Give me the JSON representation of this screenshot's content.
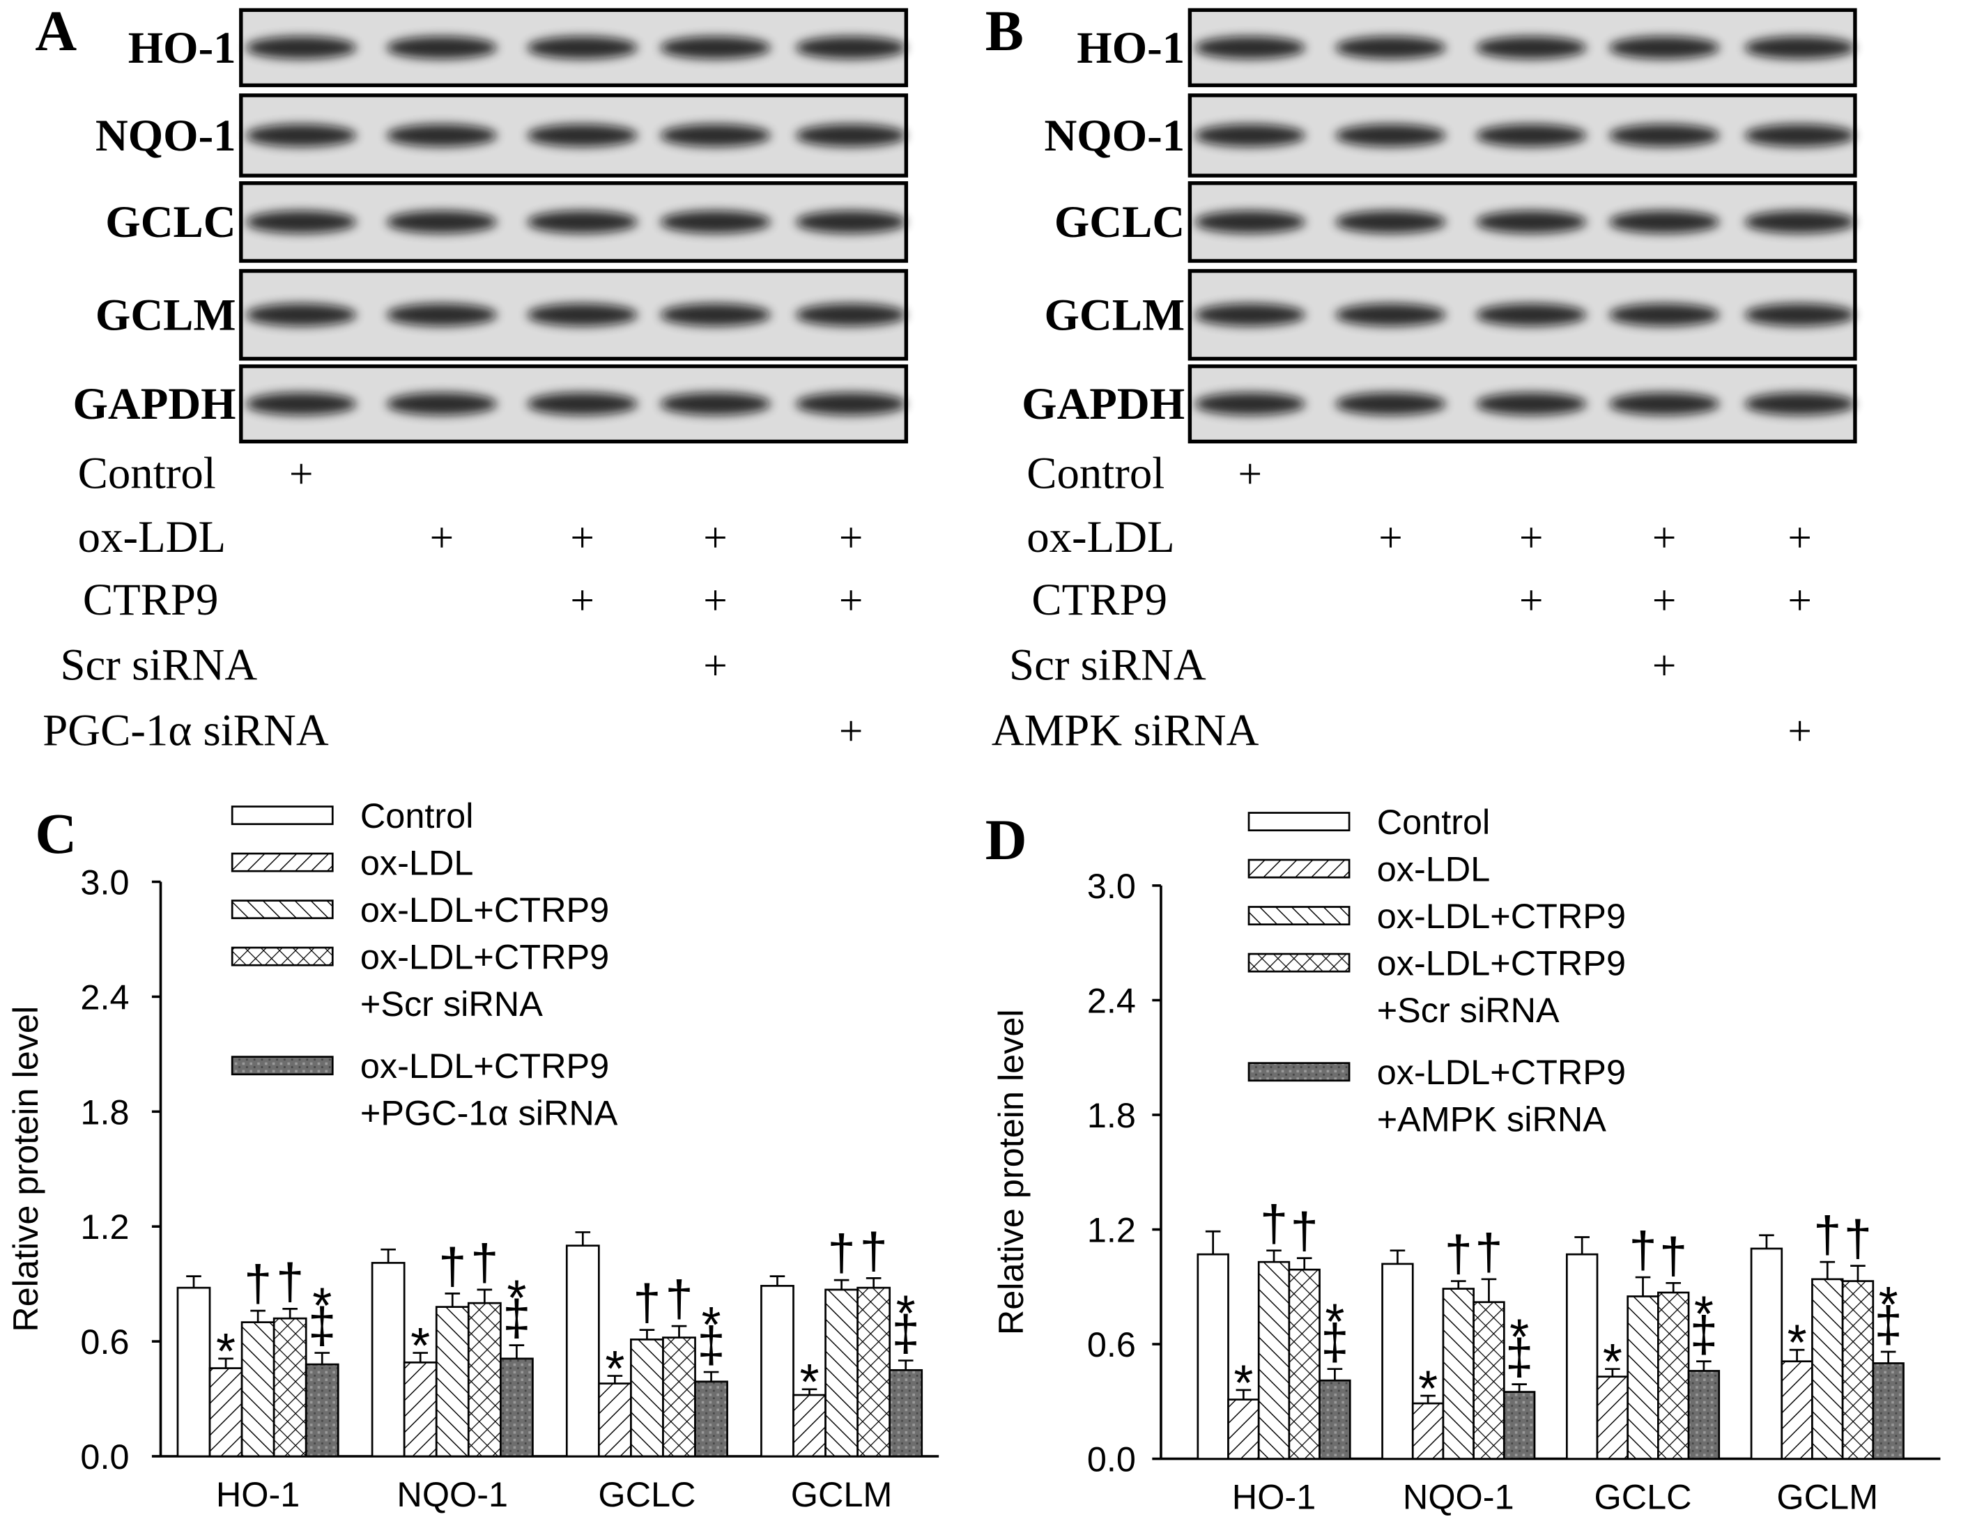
{
  "panel_labels": [
    "A",
    "B",
    "C",
    "D"
  ],
  "blots": [
    {
      "rows": [
        "HO-1",
        "NQO-1",
        "GCLC",
        "GCLM",
        "GAPDH"
      ],
      "conditions": [
        {
          "name": "Control",
          "lanes": [
            "+",
            null,
            null,
            null,
            null
          ]
        },
        {
          "name": "ox-LDL",
          "lanes": [
            null,
            "+",
            "+",
            "+",
            "+"
          ]
        },
        {
          "name": "CTRP9",
          "lanes": [
            null,
            null,
            "+",
            "+",
            "+"
          ]
        },
        {
          "name": "Scr siRNA",
          "lanes": [
            null,
            null,
            null,
            "+",
            null
          ]
        },
        {
          "name": "PGC-1α siRNA",
          "lanes": [
            null,
            null,
            null,
            null,
            "+"
          ]
        }
      ]
    },
    {
      "rows": [
        "HO-1",
        "NQO-1",
        "GCLC",
        "GCLM",
        "GAPDH"
      ],
      "conditions": [
        {
          "name": "Control",
          "lanes": [
            "+",
            null,
            null,
            null,
            null
          ]
        },
        {
          "name": "ox-LDL",
          "lanes": [
            null,
            "+",
            "+",
            "+",
            "+"
          ]
        },
        {
          "name": "CTRP9",
          "lanes": [
            null,
            null,
            "+",
            "+",
            "+"
          ]
        },
        {
          "name": "Scr siRNA",
          "lanes": [
            null,
            null,
            null,
            "+",
            null
          ]
        },
        {
          "name": "AMPK siRNA",
          "lanes": [
            null,
            null,
            null,
            null,
            "+"
          ]
        }
      ]
    }
  ],
  "chart_data": [
    {
      "type": "bar",
      "ylabel": "Relative protein level",
      "categories": [
        "HO-1",
        "NQO-1",
        "GCLC",
        "GCLM"
      ],
      "ylim": [
        0,
        3
      ],
      "yticks": [
        {
          "value": 0,
          "label": "0.0"
        },
        0.6,
        1.2,
        1.8,
        2.4,
        {
          "value": 3,
          "label": "3.0"
        }
      ],
      "series": [
        {
          "name": "Control",
          "color": "#ffffff",
          "pattern": "none",
          "values": [
            0.88,
            1.01,
            1.1,
            0.89
          ],
          "errors": [
            0.06,
            0.07,
            0.07,
            0.05
          ]
        },
        {
          "name": "ox-LDL",
          "color": "#ffffff",
          "pattern": "forward",
          "values": [
            0.46,
            0.49,
            0.38,
            0.32
          ],
          "errors": [
            0.05,
            0.05,
            0.04,
            0.03
          ],
          "annotations": [
            [
              "*"
            ],
            [
              "*"
            ],
            [
              "*"
            ],
            [
              "*"
            ]
          ]
        },
        {
          "name": "ox-LDL+CTRP9",
          "color": "#ffffff",
          "pattern": "backward",
          "values": [
            0.7,
            0.78,
            0.61,
            0.87
          ],
          "errors": [
            0.06,
            0.07,
            0.05,
            0.05
          ],
          "annotations": [
            [
              "†"
            ],
            [
              "†"
            ],
            [
              "†"
            ],
            [
              "†"
            ]
          ]
        },
        {
          "name": "ox-LDL+CTRP9\n+Scr siRNA",
          "color": "#ffffff",
          "pattern": "cross",
          "values": [
            0.72,
            0.8,
            0.62,
            0.88
          ],
          "errors": [
            0.05,
            0.07,
            0.06,
            0.05
          ],
          "annotations": [
            [
              "†"
            ],
            [
              "†"
            ],
            [
              "†"
            ],
            [
              "†"
            ]
          ]
        },
        {
          "name": "ox-LDL+CTRP9\n+PGC-1α siRNA",
          "color": "#7f7f7f",
          "pattern": "dots",
          "values": [
            0.48,
            0.51,
            0.39,
            0.45
          ],
          "errors": [
            0.06,
            0.07,
            0.05,
            0.05
          ],
          "annotations": [
            [
              "*",
              "‡"
            ],
            [
              "*",
              "‡"
            ],
            [
              "*",
              "‡"
            ],
            [
              "*",
              "‡"
            ]
          ]
        }
      ]
    },
    {
      "type": "bar",
      "ylabel": "Relative protein level",
      "categories": [
        "HO-1",
        "NQO-1",
        "GCLC",
        "GCLM"
      ],
      "ylim": [
        0,
        3
      ],
      "yticks": [
        {
          "value": 0,
          "label": "0.0"
        },
        0.6,
        1.2,
        1.8,
        2.4,
        {
          "value": 3,
          "label": "3.0"
        }
      ],
      "series": [
        {
          "name": "Control",
          "color": "#ffffff",
          "pattern": "none",
          "values": [
            1.07,
            1.02,
            1.07,
            1.1
          ],
          "errors": [
            0.12,
            0.07,
            0.09,
            0.07
          ]
        },
        {
          "name": "ox-LDL",
          "color": "#ffffff",
          "pattern": "forward",
          "values": [
            0.31,
            0.29,
            0.43,
            0.51
          ],
          "errors": [
            0.05,
            0.04,
            0.04,
            0.06
          ],
          "annotations": [
            [
              "*"
            ],
            [
              "*"
            ],
            [
              "*"
            ],
            [
              "*"
            ]
          ]
        },
        {
          "name": "ox-LDL+CTRP9",
          "color": "#ffffff",
          "pattern": "backward",
          "values": [
            1.03,
            0.89,
            0.85,
            0.94
          ],
          "errors": [
            0.06,
            0.04,
            0.1,
            0.09
          ],
          "annotations": [
            [
              "†"
            ],
            [
              "†"
            ],
            [
              "†"
            ],
            [
              "†"
            ]
          ]
        },
        {
          "name": "ox-LDL+CTRP9\n+Scr siRNA",
          "color": "#ffffff",
          "pattern": "cross",
          "values": [
            0.99,
            0.82,
            0.87,
            0.93
          ],
          "errors": [
            0.06,
            0.12,
            0.05,
            0.08
          ],
          "annotations": [
            [
              "†"
            ],
            [
              "†"
            ],
            [
              "†"
            ],
            [
              "†"
            ]
          ]
        },
        {
          "name": "ox-LDL+CTRP9\n+AMPK siRNA",
          "color": "#7f7f7f",
          "pattern": "dots",
          "values": [
            0.41,
            0.35,
            0.46,
            0.5
          ],
          "errors": [
            0.06,
            0.04,
            0.05,
            0.06
          ],
          "annotations": [
            [
              "*",
              "‡"
            ],
            [
              "*",
              "‡"
            ],
            [
              "*",
              "‡"
            ],
            [
              "*",
              "‡"
            ]
          ]
        }
      ]
    }
  ]
}
